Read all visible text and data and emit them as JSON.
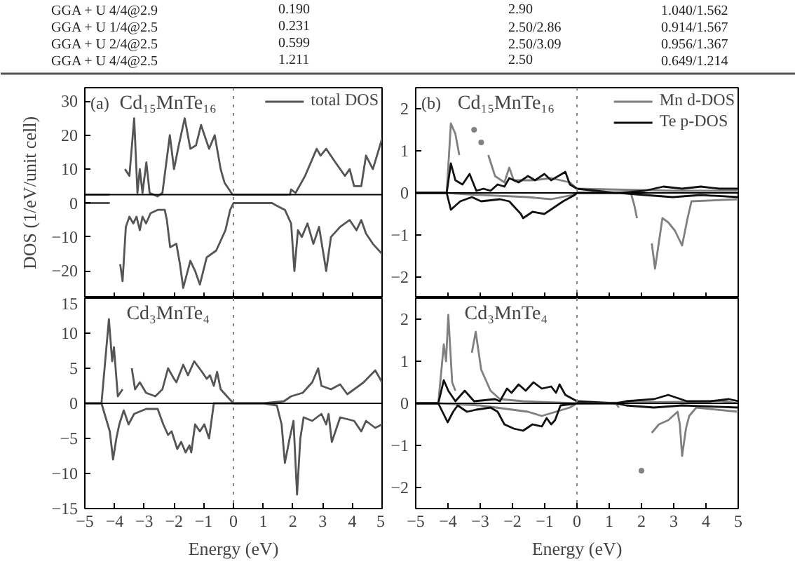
{
  "chart_data": [
    {
      "type": "other",
      "annotations": [
        "GGA + U 4/4@2.9",
        "0.190",
        "2.90",
        "1.040/1.562",
        "GGA + U 1/4@2.5",
        "0.231",
        "2.50/2.86",
        "0.914/1.567",
        "GGA + U 2/4@2.5",
        "0.599",
        "2.50/3.09",
        "0.956/1.367",
        "GGA + U 4/4@2.5",
        "1.211",
        "2.50",
        "0.649/1.214"
      ]
    },
    {
      "type": "line",
      "ylabel": "DOS (1/eV/unit cell)",
      "annotations": [
        "(a)",
        "Cd₁₅MnTe₁₆"
      ],
      "xlim": [
        -5,
        5
      ],
      "xticks": [
        -5,
        -4,
        -3,
        -2,
        -1,
        0,
        1,
        2,
        3,
        4,
        5
      ],
      "ylim": [
        -28,
        34
      ],
      "yticks": [
        -20,
        -10,
        0,
        10,
        20,
        30
      ],
      "grid": false,
      "legend": "top right",
      "tick_labels": "y",
      "ref_lines": [
        {
          "axis": "x",
          "value": 0,
          "color": "#888888",
          "line_style": "dotted"
        },
        {
          "axis": "y",
          "value": 2.5,
          "color": "#000000"
        }
      ],
      "series": [
        {
          "name": "total DOS",
          "color": "#555555",
          "x": [
            -5,
            -4.16,
            -4.05,
            -3.89,
            -3.65,
            -3.5,
            -3.34,
            -3.23,
            -3.15,
            -3.06,
            -2.93,
            -2.82,
            -2.55,
            -2.39,
            -2.14,
            -2.0,
            -1.84,
            -1.64,
            -1.45,
            -1.26,
            -1.09,
            -0.82,
            -0.63,
            -0.43,
            -0.3,
            -0.03,
            1.9,
            1.94,
            2.09,
            2.41,
            2.8,
            2.93,
            3.12,
            3.43,
            3.75,
            3.91,
            4.06,
            4.3,
            4.46,
            4.69,
            5
          ],
          "values": [
            2.5,
            2.5,
            null,
            null,
            10,
            8,
            25,
            3,
            10,
            3,
            12,
            3,
            2,
            3,
            20,
            10,
            17,
            25,
            16,
            17,
            23,
            16,
            20,
            10,
            6,
            2.5,
            2.5,
            4,
            3,
            8,
            16,
            14,
            16,
            12,
            8,
            10,
            5,
            5,
            14,
            10,
            19
          ]
        },
        {
          "color": "#555555",
          "x": [
            -5,
            -4.16,
            -4.05,
            -3.92,
            -3.81,
            -3.73,
            -3.62,
            -3.5,
            -3.37,
            -3.26,
            -3.15,
            -3.06,
            -2.94,
            -2.79,
            -2.55,
            -2.31,
            -2.24,
            -2.13,
            -1.92,
            -1.8,
            -1.69,
            -1.45,
            -1.29,
            -1.13,
            -0.9,
            -0.58,
            -0.27,
            -0.11,
            0,
            1.3,
            1.4,
            1.73,
            1.94,
            2.05,
            2.17,
            2.3,
            2.49,
            2.69,
            2.88,
            3.12,
            3.28,
            3.59,
            3.91,
            4.14,
            4.3,
            4.46,
            4.69,
            5
          ],
          "values": [
            0,
            0,
            null,
            null,
            -18,
            -23,
            -7,
            -4,
            -6,
            -4,
            -8,
            -4,
            -6,
            -3,
            -2,
            -2,
            -5,
            -13,
            -12,
            -18,
            -25,
            -17,
            -20,
            -24,
            -16,
            -14,
            -8,
            -2,
            0,
            0,
            -0.5,
            -2,
            -6,
            -20,
            -8,
            -10,
            -6,
            -12,
            -7,
            -20,
            -10,
            -7,
            -5,
            -8,
            -5,
            -9,
            -12,
            -15
          ]
        }
      ]
    },
    {
      "type": "line",
      "annotations": [
        "(b)",
        "Cd₁₅MnTe₁₆"
      ],
      "xlim": [
        -5,
        5
      ],
      "xticks": [
        -5,
        -4,
        -3,
        -2,
        -1,
        0,
        1,
        2,
        3,
        4,
        5
      ],
      "ylim": [
        -2.5,
        2.5
      ],
      "yticks": [
        -2,
        -1,
        0,
        1,
        2
      ],
      "grid": false,
      "legend": "top right",
      "tick_labels": "y",
      "ref_lines": [
        {
          "axis": "x",
          "value": 0,
          "color": "#888888",
          "line_style": "dotted"
        },
        {
          "axis": "y",
          "value": 0,
          "color": "#000000"
        }
      ],
      "series": [
        {
          "name": "Mn d-DOS",
          "color": "#808080",
          "x": [
            -5,
            -4.04,
            -3.91,
            -3.77,
            -3.65,
            -3.48,
            -3.19,
            -3.12,
            -2.97,
            -2.9,
            -2.75,
            -2.54,
            -2.25,
            -2.1,
            -1.96,
            -1.38,
            -0.8,
            -0.22,
            0,
            3,
            5
          ],
          "values": [
            0,
            0,
            1.65,
            1.4,
            0.9,
            null,
            1.5,
            null,
            1.2,
            null,
            0.9,
            0.4,
            0.25,
            0.6,
            0.3,
            0.3,
            0.35,
            0.25,
            0.1,
            0.05,
            0.05
          ]
        },
        {
          "name": "Te p-DOS",
          "color": "#111111",
          "x": [
            -5,
            -4.04,
            -3.91,
            -3.77,
            -3.55,
            -3.33,
            -3.12,
            -2.9,
            -2.68,
            -2.46,
            -2.25,
            -2.1,
            -1.81,
            -1.52,
            -1.3,
            -1.01,
            -0.8,
            -0.36,
            -0.22,
            0,
            1.2,
            2.1,
            2.68,
            3.26,
            3.84,
            4.42,
            5
          ],
          "values": [
            0,
            0,
            0.7,
            0.3,
            0.2,
            0.45,
            0.05,
            0.1,
            0.05,
            0.2,
            0.15,
            0.35,
            0.25,
            0.4,
            0.3,
            0.45,
            0.3,
            0.5,
            0.2,
            0.1,
            0,
            0.05,
            0.15,
            0.1,
            0.15,
            0.1,
            0.1
          ]
        },
        {
          "color": "#808080",
          "x": [
            -5,
            -4.04,
            -3.5,
            -1.52,
            -0.8,
            -0.14,
            0,
            1.67,
            1.78,
            1.86,
            1.93,
            2.17,
            2.32,
            2.42,
            2.65,
            2.83,
            3.04,
            3.26,
            3.43,
            3.55,
            5
          ],
          "values": [
            0,
            0,
            -0.03,
            -0.1,
            -0.15,
            -0.05,
            0,
            0,
            -0.3,
            -0.6,
            null,
            null,
            -1.2,
            -1.8,
            -0.6,
            -0.7,
            -0.9,
            -1.25,
            -0.6,
            -0.2,
            -0.15
          ]
        },
        {
          "color": "#111111",
          "x": [
            -5,
            -4.04,
            -3.91,
            -3.62,
            -3.26,
            -2.97,
            -2.39,
            -2.1,
            -1.74,
            -1.67,
            -1.38,
            -1.01,
            -0.72,
            -0.43,
            -0.07,
            0,
            1.3,
            2.1,
            2.97,
            3.84,
            5
          ],
          "values": [
            0,
            0,
            -0.4,
            -0.2,
            -0.1,
            -0.2,
            -0.15,
            -0.2,
            -0.5,
            -0.6,
            -0.45,
            -0.5,
            -0.35,
            -0.2,
            -0.05,
            0,
            0,
            -0.05,
            -0.1,
            -0.05,
            -0.1
          ]
        }
      ]
    },
    {
      "type": "line",
      "xlabel": "Energy (eV)",
      "annotations": [
        "Cd₃MnTe₄"
      ],
      "xlim": [
        -5,
        5
      ],
      "xticks": [
        -5,
        -4,
        -3,
        -2,
        -1,
        0,
        1,
        2,
        3,
        4,
        5
      ],
      "ylim": [
        -15,
        15
      ],
      "yticks": [
        -15,
        -10,
        -5,
        0,
        5,
        10,
        15
      ],
      "grid": false,
      "ref_lines": [
        {
          "axis": "x",
          "value": 0,
          "color": "#888888",
          "line_style": "dotted"
        },
        {
          "axis": "y",
          "value": 0,
          "color": "#000000"
        }
      ],
      "series": [
        {
          "color": "#555555",
          "x": [
            -5,
            -4.44,
            -4.19,
            -4.08,
            -4.02,
            -3.89,
            -3.73,
            -3.53,
            -3.42,
            -3.31,
            -3.15,
            -2.94,
            -2.63,
            -2.39,
            -2.2,
            -2.0,
            -1.92,
            -1.69,
            -1.53,
            -1.32,
            -1.06,
            -0.9,
            -0.79,
            -0.66,
            -0.55,
            -0.43,
            -0.11,
            0,
            1.0,
            1.7,
            1.94,
            2.33,
            2.65,
            2.85,
            2.96,
            3.28,
            3.59,
            3.83,
            4.06,
            4.38,
            4.77,
            5
          ],
          "values": [
            0,
            0,
            12,
            6,
            8,
            1,
            2,
            null,
            5,
            2,
            3,
            1.5,
            1,
            2,
            5,
            3.5,
            3,
            5.5,
            4,
            6,
            4.5,
            3.5,
            4,
            2.5,
            4.5,
            2,
            0.5,
            0,
            0,
            0.3,
            1,
            1.5,
            3,
            5,
            2.5,
            2,
            2.7,
            1.3,
            2,
            3,
            4.7,
            3
          ]
        },
        {
          "color": "#555555",
          "x": [
            -5,
            -4.44,
            -4.16,
            -4.05,
            -3.94,
            -3.84,
            -3.69,
            -3.53,
            -3.34,
            -2.94,
            -2.55,
            -2.36,
            -2.2,
            -2.08,
            -1.89,
            -1.76,
            -1.61,
            -1.48,
            -1.42,
            -1.29,
            -1.13,
            -0.98,
            -0.82,
            -0.66,
            0,
            1.0,
            1.46,
            1.62,
            1.73,
            1.89,
            2.02,
            2.14,
            2.25,
            2.36,
            2.65,
            2.96,
            3.12,
            3.2,
            3.31,
            3.59,
            4.06,
            4.3,
            4.46,
            4.77,
            5
          ],
          "values": [
            0,
            0,
            -4,
            -8,
            -5,
            -3,
            -1,
            -3,
            -1.5,
            -0.8,
            -0.8,
            -3,
            -4.5,
            -4,
            -6.5,
            -5.5,
            -7,
            -6,
            -7,
            -3,
            -4,
            -3,
            -5,
            0,
            0,
            0,
            -0.3,
            -3,
            -8.5,
            -5,
            -2.5,
            -13,
            -5,
            -2,
            -2.5,
            -1.5,
            -3,
            -1.5,
            -5.5,
            -2,
            -2.5,
            -4,
            -2.5,
            -3.5,
            -3
          ]
        }
      ]
    },
    {
      "type": "line",
      "xlabel": "Energy (eV)",
      "annotations": [
        "Cd₃MnTe₄"
      ],
      "xlim": [
        -5,
        5
      ],
      "xticks": [
        -5,
        -4,
        -3,
        -2,
        -1,
        0,
        1,
        2,
        3,
        4,
        5
      ],
      "ylim": [
        -2.5,
        2.5
      ],
      "yticks": [
        -2,
        -1,
        0,
        1,
        2
      ],
      "grid": false,
      "ref_lines": [
        {
          "axis": "x",
          "value": 0,
          "color": "#888888",
          "line_style": "dotted"
        },
        {
          "axis": "y",
          "value": 0,
          "color": "#000000"
        }
      ],
      "series": [
        {
          "color": "#808080",
          "x": [
            -5,
            -4.3,
            -4.13,
            -4.06,
            -3.99,
            -3.87,
            -3.77,
            -3.62,
            -3.41,
            -3.26,
            -3.14,
            -2.97,
            -2.68,
            -2.39,
            -1.67,
            0,
            4.5,
            5
          ],
          "values": [
            0,
            0,
            1.4,
            1.0,
            2.1,
            0.5,
            0.3,
            null,
            null,
            1.2,
            1.7,
            0.8,
            0.3,
            0.1,
            0.05,
            0,
            0.05,
            0
          ]
        },
        {
          "color": "#111111",
          "x": [
            -5,
            -4.3,
            -4.13,
            -3.99,
            -3.77,
            -3.48,
            -3.19,
            -2.54,
            -2.39,
            -2.17,
            -2.03,
            -1.81,
            -1.59,
            -1.35,
            -1.09,
            -0.8,
            -0.65,
            -0.54,
            -0.36,
            0,
            1.2,
            1.52,
            2.39,
            2.83,
            3.41,
            4.13,
            4.71,
            5
          ],
          "values": [
            0,
            0,
            0.55,
            0.3,
            0.05,
            0.3,
            0.05,
            0.1,
            0.05,
            0.35,
            0.25,
            0.45,
            0.3,
            0.5,
            0.35,
            0.4,
            0.25,
            0.45,
            0.2,
            0.05,
            0,
            0.05,
            0.1,
            0.2,
            0.05,
            0.05,
            0.1,
            0.05
          ]
        },
        {
          "color": "#808080",
          "x": [
            -5,
            -4.3,
            -3,
            -1.52,
            -1.09,
            -0.22,
            0,
            1.2,
            1.3,
            1.59,
            1.88,
            2.0,
            2.1,
            2.25,
            2.32,
            2.54,
            2.83,
            3.12,
            3.19,
            3.26,
            3.38,
            3.48,
            3.7,
            5
          ],
          "values": [
            0,
            0,
            -0.05,
            -0.2,
            -0.3,
            -0.1,
            0,
            0,
            -0.1,
            null,
            null,
            -1.6,
            null,
            null,
            -0.7,
            -0.5,
            -0.4,
            -0.2,
            -0.5,
            -1.25,
            -0.6,
            -0.3,
            -0.1,
            -0.2
          ]
        },
        {
          "color": "#111111",
          "x": [
            -5,
            -4.3,
            -4.01,
            -3.84,
            -3.7,
            -3.41,
            -3.12,
            -2.68,
            -2.46,
            -2.25,
            -1.96,
            -1.67,
            -1.38,
            -1.09,
            -0.94,
            -0.8,
            -0.68,
            -0.51,
            0,
            1.2,
            1.52,
            2.39,
            3.26,
            5
          ],
          "values": [
            0,
            0,
            -0.45,
            -0.2,
            -0.05,
            -0.2,
            -0.15,
            -0.1,
            -0.2,
            -0.5,
            -0.6,
            -0.65,
            -0.5,
            -0.55,
            -0.35,
            -0.5,
            -0.4,
            -0.05,
            0,
            0,
            -0.05,
            -0.1,
            -0.05,
            -0.1
          ]
        }
      ]
    }
  ]
}
